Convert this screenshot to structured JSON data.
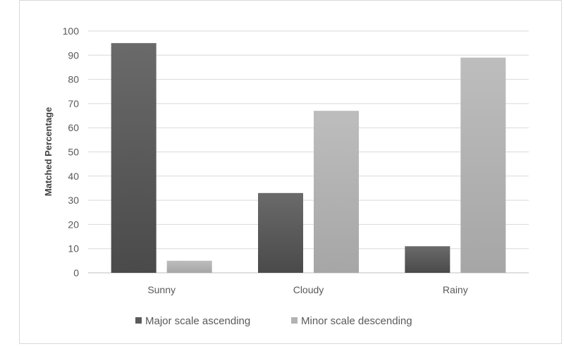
{
  "chart_data": {
    "type": "bar",
    "title": "",
    "xlabel": "",
    "ylabel": "Matched Percentage",
    "ylim": [
      0,
      100
    ],
    "yticks": [
      0,
      10,
      20,
      30,
      40,
      50,
      60,
      70,
      80,
      90,
      100
    ],
    "categories": [
      "Sunny",
      "Cloudy",
      "Rainy"
    ],
    "series": [
      {
        "name": "Major scale ascending",
        "values": [
          95,
          33,
          11
        ],
        "color": "#5b5b5b"
      },
      {
        "name": "Minor scale descending",
        "values": [
          5,
          67,
          89
        ],
        "color": "#b2b2b2"
      }
    ],
    "grid": true,
    "legend": "bottom"
  }
}
